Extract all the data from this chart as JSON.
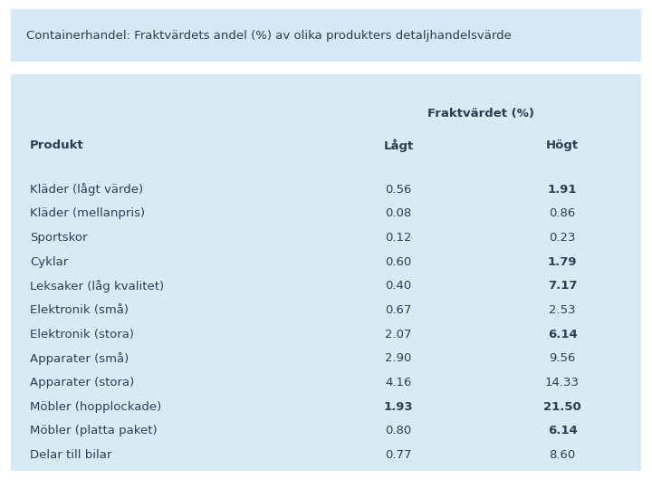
{
  "title": "Containerhandel: Fraktvärdets andel (%) av olika produkters detaljhandelsvärde",
  "title_bg": "#d6e8f4",
  "table_bg": "#daeaf4",
  "row_alt_bg": "#daeaf4",
  "col_header_1": "Fraktvärdet (%)",
  "col_sub1": "Lågt",
  "col_sub2": "Högt",
  "col_label": "Produkt",
  "products": [
    "Kläder (lågt värde)",
    "Kläder (mellanpris)",
    "Sportskor",
    "Cyklar",
    "Leksaker (låg kvalitet)",
    "Elektronik (små)",
    "Elektronik (stora)",
    "Apparater (små)",
    "Apparater (stora)",
    "Möbler (hopplockade)",
    "Möbler (platta paket)",
    "Delar till bilar"
  ],
  "lagt": [
    0.56,
    0.08,
    0.12,
    0.6,
    0.4,
    0.67,
    2.07,
    2.9,
    4.16,
    1.93,
    0.8,
    0.77
  ],
  "hogt": [
    1.91,
    0.86,
    0.23,
    1.79,
    7.17,
    2.53,
    6.14,
    9.56,
    14.33,
    21.5,
    6.14,
    8.6
  ],
  "bold_lagt": [
    false,
    false,
    false,
    false,
    false,
    false,
    false,
    false,
    false,
    true,
    false,
    false
  ],
  "bold_hogt": [
    true,
    false,
    false,
    true,
    true,
    false,
    true,
    false,
    false,
    true,
    true,
    false
  ],
  "text_color": "#2c3e50",
  "font_family": "DejaVu Sans",
  "bg_outer": "#ffffff",
  "fontsize": 9.5
}
